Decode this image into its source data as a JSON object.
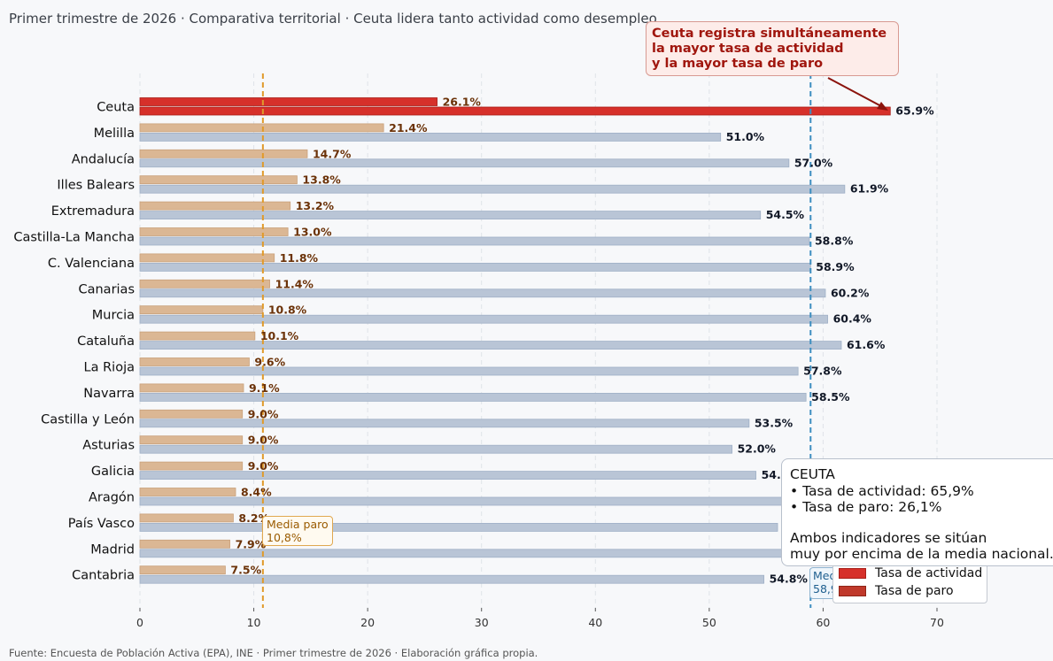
{
  "subtitle": "Primer trimestre de 2026 · Comparativa territorial · Ceuta lidera tanto actividad como desempleo",
  "source": "Fuente: Encuesta de Población Activa (EPA), INE · Primer trimestre de 2026 · Elaboración gráfica propia.",
  "callout": {
    "lines": [
      "Ceuta registra simultáneamente",
      "la mayor tasa de actividad",
      "y la mayor tasa de paro"
    ]
  },
  "infobox": {
    "title": "CEUTA",
    "line1": "• Tasa de actividad: 65,9%",
    "line2": "• Tasa de paro: 26,1%",
    "line3": "Ambos indicadores se sitúan",
    "line4": "muy por encima de la media nacional."
  },
  "media_paro": {
    "line1": "Media paro",
    "line2": "10,8%"
  },
  "media_actividad": {
    "line1": "Media actividad",
    "line2": "58,9%"
  },
  "legend": {
    "actividad": "Tasa de actividad",
    "paro": "Tasa de paro"
  },
  "colors": {
    "paro": "#dbb794",
    "paro_edge": "#c9a07a",
    "actividad": "#b9c5d6",
    "actividad_edge": "#9fb0c6",
    "highlight": "#d6302a",
    "highlight_edge": "#a81e18",
    "legend_paro": "#c0392b",
    "media_paro": "#e09a2a",
    "media_actividad": "#3d8ec0",
    "paro_label": "#6b3208",
    "act_label": "#111827"
  },
  "chart_data": {
    "type": "bar",
    "orientation": "horizontal",
    "categories": [
      "Ceuta",
      "Melilla",
      "Andalucía",
      "Illes Balears",
      "Extremadura",
      "Castilla-La Mancha",
      "C. Valenciana",
      "Canarias",
      "Murcia",
      "Cataluña",
      "La Rioja",
      "Navarra",
      "Castilla y León",
      "Asturias",
      "Galicia",
      "Aragón",
      "País Vasco",
      "Madrid",
      "Cantabria"
    ],
    "series": [
      {
        "name": "Tasa de paro",
        "values": [
          26.1,
          21.4,
          14.7,
          13.8,
          13.2,
          13.0,
          11.8,
          11.4,
          10.8,
          10.1,
          9.6,
          9.1,
          9.0,
          9.0,
          9.0,
          8.4,
          8.2,
          7.9,
          7.5
        ]
      },
      {
        "name": "Tasa de actividad",
        "values": [
          65.9,
          51.0,
          57.0,
          61.9,
          54.5,
          58.8,
          58.9,
          60.2,
          60.4,
          61.6,
          57.8,
          58.5,
          53.5,
          52.0,
          54.1,
          57.6,
          56.0,
          62.1,
          54.8
        ]
      }
    ],
    "paro_labels": [
      "26.1%",
      "21.4%",
      "14.7%",
      "13.8%",
      "13.2%",
      "13.0%",
      "11.8%",
      "11.4%",
      "10.8%",
      "10.1%",
      "9.6%",
      "9.1%",
      "9.0%",
      "9.0%",
      "9.0%",
      "8.4%",
      "8.2%",
      "7.9%",
      "7.5%"
    ],
    "actividad_labels": [
      "65.9%",
      "51.0%",
      "57.0%",
      "61.9%",
      "54.5%",
      "58.8%",
      "58.9%",
      "60.2%",
      "60.4%",
      "61.6%",
      "57.8%",
      "58.5%",
      "53.5%",
      "52.0%",
      "54.1%",
      "",
      "",
      "",
      "54.8%"
    ],
    "reference_lines": [
      {
        "name": "Media paro",
        "value": 10.8
      },
      {
        "name": "Media actividad",
        "value": 58.9
      }
    ],
    "xticks": [
      0,
      10,
      20,
      30,
      40,
      50,
      60,
      70
    ],
    "xlim": [
      0,
      70
    ],
    "grid": "vertical dashed",
    "legend_position": "lower-right"
  }
}
